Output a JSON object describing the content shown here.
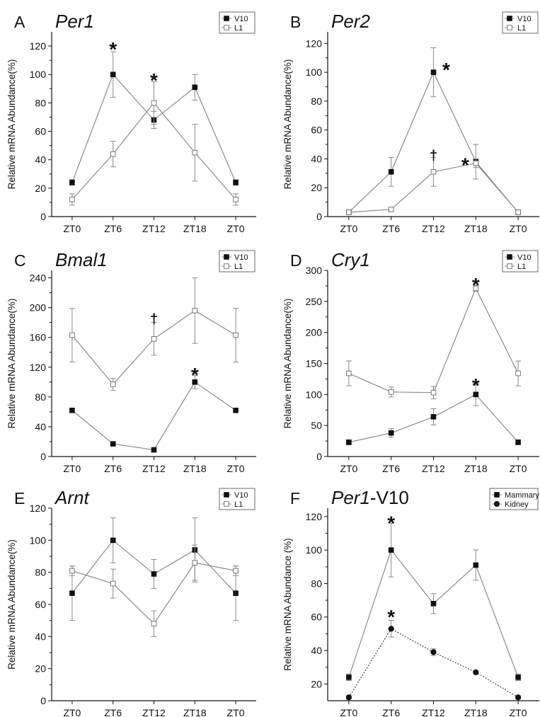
{
  "figure": {
    "common": {
      "ylabel": "Relative mRNA Abundance(%)",
      "x_ticks": [
        "ZT0",
        "ZT6",
        "ZT12",
        "ZT18",
        "ZT0"
      ]
    }
  },
  "chart_data": [
    {
      "panel": "A",
      "title": "Per1",
      "type": "line",
      "categories": [
        "ZT0",
        "ZT6",
        "ZT12",
        "ZT18",
        "ZT0"
      ],
      "ylabel": "Relative mRNA Abundance(%)",
      "ylim": [
        0,
        130
      ],
      "yticks": [
        0,
        20,
        40,
        60,
        80,
        100,
        120
      ],
      "legend_position": "top-right",
      "series": [
        {
          "name": "V10",
          "marker": "filled-square",
          "line": "solid",
          "values": [
            24,
            100,
            68,
            91,
            24
          ],
          "errors": [
            2,
            16,
            6,
            9,
            2
          ]
        },
        {
          "name": "L1",
          "marker": "open-square",
          "line": "solid",
          "values": [
            12,
            44,
            80,
            45,
            12
          ],
          "errors": [
            4,
            9,
            15,
            20,
            4
          ]
        }
      ],
      "annotations": [
        {
          "text": "*",
          "x_index": 1,
          "y": 120
        },
        {
          "text": "*",
          "x_index": 2,
          "y": 98
        }
      ]
    },
    {
      "panel": "B",
      "title": "Per2",
      "type": "line",
      "categories": [
        "ZT0",
        "ZT6",
        "ZT12",
        "ZT18",
        "ZT0"
      ],
      "ylabel": "Relative mRNA Abundance(%)",
      "ylim": [
        0,
        128
      ],
      "yticks": [
        0,
        20,
        40,
        60,
        80,
        100,
        120
      ],
      "legend_position": "top-right",
      "series": [
        {
          "name": "V10",
          "marker": "filled-square",
          "line": "solid",
          "values": [
            3,
            31,
            100,
            38,
            3
          ],
          "errors": [
            1,
            10,
            17,
            12,
            1
          ]
        },
        {
          "name": "L1",
          "marker": "open-square",
          "line": "solid",
          "values": [
            3,
            5,
            31,
            37,
            3
          ],
          "errors": [
            1,
            1,
            10,
            3,
            1
          ]
        }
      ],
      "annotations": [
        {
          "text": "*",
          "x_index": 2.3,
          "y": 104
        },
        {
          "text": "†",
          "x_index": 2,
          "y": 42
        },
        {
          "text": "*",
          "x_index": 2.75,
          "y": 38
        }
      ]
    },
    {
      "panel": "C",
      "title": "Bmal1",
      "type": "line",
      "categories": [
        "ZT0",
        "ZT6",
        "ZT12",
        "ZT18",
        "ZT0"
      ],
      "ylabel": "Relative mRNA Abundance(%)",
      "ylim": [
        0,
        250
      ],
      "yticks": [
        0,
        40,
        80,
        120,
        160,
        200,
        240
      ],
      "legend_position": "top-right",
      "series": [
        {
          "name": "V10",
          "marker": "filled-square",
          "line": "solid",
          "values": [
            62,
            17,
            9,
            100,
            62
          ],
          "errors": [
            0,
            0,
            2,
            9,
            0
          ]
        },
        {
          "name": "L1",
          "marker": "open-square",
          "line": "solid",
          "values": [
            163,
            97,
            158,
            196,
            163
          ],
          "errors": [
            36,
            8,
            22,
            44,
            36
          ]
        }
      ],
      "annotations": [
        {
          "text": "†",
          "x_index": 2,
          "y": 184
        },
        {
          "text": "*",
          "x_index": 3,
          "y": 114
        }
      ]
    },
    {
      "panel": "D",
      "title": "Cry1",
      "type": "line",
      "categories": [
        "ZT0",
        "ZT6",
        "ZT12",
        "ZT18",
        "ZT0"
      ],
      "ylabel": "Relative mRNA Abundance(%)",
      "ylim": [
        0,
        300
      ],
      "yticks": [
        0,
        50,
        100,
        150,
        200,
        250,
        300
      ],
      "legend_position": "top-right",
      "series": [
        {
          "name": "V10",
          "marker": "filled-square",
          "line": "solid",
          "values": [
            23,
            38,
            64,
            100,
            23
          ],
          "errors": [
            4,
            7,
            13,
            18,
            4
          ]
        },
        {
          "name": "L1",
          "marker": "open-square",
          "line": "solid",
          "values": [
            134,
            104,
            103,
            271,
            134
          ],
          "errors": [
            20,
            8,
            10,
            5,
            20
          ]
        }
      ],
      "annotations": [
        {
          "text": "*",
          "x_index": 3,
          "y": 282
        },
        {
          "text": "*",
          "x_index": 3,
          "y": 120
        }
      ]
    },
    {
      "panel": "E",
      "title": "Arnt",
      "type": "line",
      "categories": [
        "ZT0",
        "ZT6",
        "ZT12",
        "ZT18",
        "ZT0"
      ],
      "ylabel": "Relative mRNA Abundance(%)",
      "ylim": [
        0,
        120
      ],
      "yticks": [
        0,
        20,
        40,
        60,
        80,
        100,
        120
      ],
      "legend_position": "top-right",
      "series": [
        {
          "name": "V10",
          "marker": "filled-square",
          "line": "solid",
          "values": [
            67,
            100,
            79,
            94,
            67
          ],
          "errors": [
            17,
            14,
            9,
            20,
            17
          ]
        },
        {
          "name": "L1",
          "marker": "open-square",
          "line": "solid",
          "values": [
            81,
            73,
            48,
            86,
            81
          ],
          "errors": [
            3,
            9,
            8,
            11,
            3
          ]
        }
      ],
      "annotations": []
    },
    {
      "panel": "F",
      "title": "Per1-V10",
      "type": "line",
      "categories": [
        "ZT0",
        "ZT6",
        "ZT12",
        "ZT18",
        "ZT0"
      ],
      "ylabel": "Relative mRNA Abundance (%)",
      "ylim": [
        10,
        125
      ],
      "yticks": [
        20,
        40,
        60,
        80,
        100,
        120
      ],
      "legend_position": "top-right",
      "series": [
        {
          "name": "Mammary",
          "marker": "filled-square",
          "line": "solid",
          "values": [
            24,
            100,
            68,
            91,
            24
          ],
          "errors": [
            2,
            16,
            6,
            9,
            2
          ]
        },
        {
          "name": "Kidney",
          "marker": "filled-circle",
          "line": "dotted",
          "values": [
            12,
            53,
            39,
            27,
            12
          ],
          "errors": [
            1,
            5,
            2,
            0,
            1
          ]
        }
      ],
      "annotations": [
        {
          "text": "*",
          "x_index": 1,
          "y": 118
        },
        {
          "text": "*",
          "x_index": 1,
          "y": 62
        }
      ]
    }
  ]
}
